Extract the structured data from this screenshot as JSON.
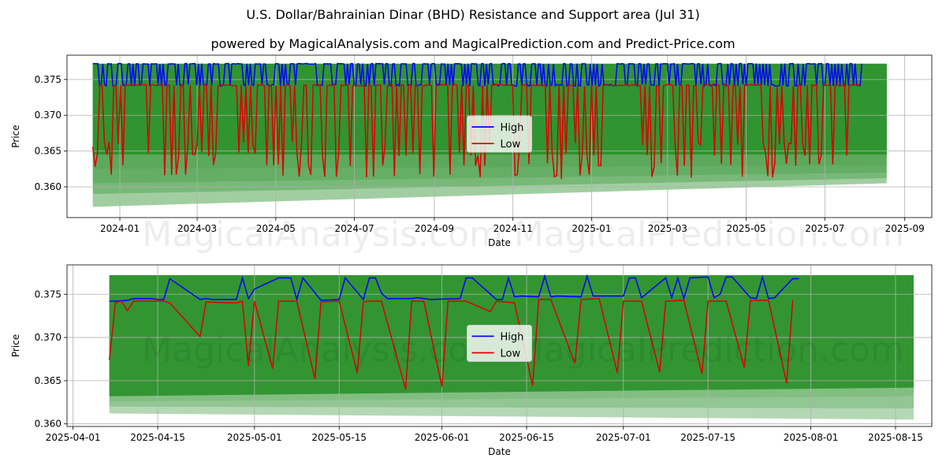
{
  "title": "U.S. Dollar/Bahrainian Dinar (BHD) Resistance and Support area (Jul 31)",
  "subtitle": "powered by MagicalAnalysis.com and MagicalPrediction.com and Predict-Price.com",
  "watermark": "MagicalAnalysis.com    MagicalPrediction.com",
  "colors": {
    "high": "#0000ff",
    "low": "#dd0000",
    "band": "#2e932e",
    "grid": "#b0b0b0"
  },
  "chart_data": [
    {
      "type": "line",
      "xlabel": "Date",
      "ylabel": "Price",
      "legend": {
        "position": "center",
        "entries": [
          "High",
          "Low"
        ]
      },
      "grid": true,
      "x_ticks": [
        "2024-01",
        "2024-03",
        "2024-05",
        "2024-07",
        "2024-09",
        "2024-11",
        "2025-01",
        "2025-03",
        "2025-05",
        "2025-07",
        "2025-09"
      ],
      "y_ticks": [
        "0.375",
        "0.370",
        "0.365",
        "0.360"
      ],
      "xlim": [
        "2023-11-21",
        "2025-09-22"
      ],
      "ylim": [
        0.3557,
        0.3784
      ],
      "x_start": "2023-12-11",
      "x_end": "2025-07-30",
      "resistance_zone": {
        "start": "2023-12-11",
        "end": "2025-08-18",
        "upper": 0.3772,
        "support_start": [
          0.3645,
          0.3625,
          0.3605,
          0.359,
          0.3572
        ],
        "support_end": [
          0.3645,
          0.363,
          0.362,
          0.3612,
          0.3605
        ]
      },
      "series": [
        {
          "name": "High",
          "base": 0.3772,
          "dips": [
            0.3743,
            0.3742,
            0.3741
          ],
          "max": 0.3773
        },
        {
          "name": "Low",
          "base": 0.3742,
          "dips": [
            0.3663,
            0.3648,
            0.3633,
            0.3618
          ],
          "min": 0.3611
        }
      ]
    },
    {
      "type": "line",
      "xlabel": "Date",
      "ylabel": "Price",
      "legend": {
        "position": "center",
        "entries": [
          "High",
          "Low"
        ]
      },
      "grid": true,
      "x_ticks": [
        "2025-04-01",
        "2025-04-15",
        "2025-05-01",
        "2025-05-15",
        "2025-06-01",
        "2025-06-15",
        "2025-07-01",
        "2025-07-15",
        "2025-08-01",
        "2025-08-15"
      ],
      "y_ticks": [
        "0.375",
        "0.370",
        "0.365",
        "0.360"
      ],
      "xlim": [
        "2025-03-31",
        "2025-08-21"
      ],
      "ylim": [
        0.3597,
        0.3784
      ],
      "resistance_zone": {
        "start": "2025-04-07",
        "end": "2025-08-18",
        "upper": 0.3772,
        "support_start": [
          0.3632,
          0.3626,
          0.362,
          0.3612
        ],
        "support_end": [
          0.3642,
          0.3632,
          0.3618,
          0.3605
        ]
      },
      "high": [
        [
          "2025-04-07",
          0.3742
        ],
        [
          "2025-04-08",
          0.3742
        ],
        [
          "2025-04-10",
          0.3743
        ],
        [
          "2025-04-11",
          0.3745
        ],
        [
          "2025-04-14",
          0.3745
        ],
        [
          "2025-04-15",
          0.3744
        ],
        [
          "2025-04-16",
          0.3744
        ],
        [
          "2025-04-17",
          0.3768
        ],
        [
          "2025-04-22",
          0.3744
        ],
        [
          "2025-04-23",
          0.3745
        ],
        [
          "2025-04-24",
          0.3744
        ],
        [
          "2025-04-28",
          0.3744
        ],
        [
          "2025-04-29",
          0.3769
        ],
        [
          "2025-04-30",
          0.3745
        ],
        [
          "2025-05-01",
          0.3756
        ],
        [
          "2025-05-05",
          0.3769
        ],
        [
          "2025-05-07",
          0.3769
        ],
        [
          "2025-05-08",
          0.3744
        ],
        [
          "2025-05-09",
          0.3769
        ],
        [
          "2025-05-12",
          0.3743
        ],
        [
          "2025-05-15",
          0.3744
        ],
        [
          "2025-05-16",
          0.3769
        ],
        [
          "2025-05-19",
          0.3744
        ],
        [
          "2025-05-20",
          0.3769
        ],
        [
          "2025-05-21",
          0.3769
        ],
        [
          "2025-05-22",
          0.3751
        ],
        [
          "2025-05-23",
          0.3745
        ],
        [
          "2025-05-27",
          0.3745
        ],
        [
          "2025-05-28",
          0.3746
        ],
        [
          "2025-05-30",
          0.3744
        ],
        [
          "2025-06-04",
          0.3745
        ],
        [
          "2025-06-05",
          0.3769
        ],
        [
          "2025-06-06",
          0.3769
        ],
        [
          "2025-06-10",
          0.3744
        ],
        [
          "2025-06-11",
          0.3744
        ],
        [
          "2025-06-12",
          0.3769
        ],
        [
          "2025-06-13",
          0.3747
        ],
        [
          "2025-06-14",
          0.3748
        ],
        [
          "2025-06-17",
          0.3747
        ],
        [
          "2025-06-18",
          0.3771
        ],
        [
          "2025-06-19",
          0.3747
        ],
        [
          "2025-06-20",
          0.3748
        ],
        [
          "2025-06-24",
          0.3747
        ],
        [
          "2025-06-25",
          0.3771
        ],
        [
          "2025-06-26",
          0.3748
        ],
        [
          "2025-07-01",
          0.3748
        ],
        [
          "2025-07-02",
          0.3769
        ],
        [
          "2025-07-03",
          0.3769
        ],
        [
          "2025-07-04",
          0.3746
        ],
        [
          "2025-07-08",
          0.3769
        ],
        [
          "2025-07-09",
          0.3746
        ],
        [
          "2025-07-10",
          0.3769
        ],
        [
          "2025-07-11",
          0.3745
        ],
        [
          "2025-07-12",
          0.3769
        ],
        [
          "2025-07-15",
          0.377
        ],
        [
          "2025-07-16",
          0.3746
        ],
        [
          "2025-07-17",
          0.375
        ],
        [
          "2025-07-18",
          0.377
        ],
        [
          "2025-07-19",
          0.377
        ],
        [
          "2025-07-22",
          0.3746
        ],
        [
          "2025-07-23",
          0.3745
        ],
        [
          "2025-07-24",
          0.377
        ],
        [
          "2025-07-25",
          0.3745
        ],
        [
          "2025-07-26",
          0.3746
        ],
        [
          "2025-07-29",
          0.3768
        ],
        [
          "2025-07-30",
          0.3768
        ]
      ],
      "low": [
        [
          "2025-04-07",
          0.3674
        ],
        [
          "2025-04-08",
          0.374
        ],
        [
          "2025-04-09",
          0.3742
        ],
        [
          "2025-04-10",
          0.3731
        ],
        [
          "2025-04-11",
          0.3742
        ],
        [
          "2025-04-16",
          0.3742
        ],
        [
          "2025-04-17",
          0.374
        ],
        [
          "2025-04-22",
          0.3701
        ],
        [
          "2025-04-23",
          0.3741
        ],
        [
          "2025-04-28",
          0.374
        ],
        [
          "2025-04-29",
          0.3742
        ],
        [
          "2025-04-30",
          0.3667
        ],
        [
          "2025-05-01",
          0.3742
        ],
        [
          "2025-05-04",
          0.3664
        ],
        [
          "2025-05-05",
          0.3742
        ],
        [
          "2025-05-08",
          0.3742
        ],
        [
          "2025-05-11",
          0.3652
        ],
        [
          "2025-05-12",
          0.3741
        ],
        [
          "2025-05-15",
          0.3742
        ],
        [
          "2025-05-18",
          0.3659
        ],
        [
          "2025-05-19",
          0.3741
        ],
        [
          "2025-05-20",
          0.3742
        ],
        [
          "2025-05-22",
          0.3742
        ],
        [
          "2025-05-26",
          0.364
        ],
        [
          "2025-05-27",
          0.3742
        ],
        [
          "2025-05-29",
          0.3742
        ],
        [
          "2025-06-01",
          0.3643
        ],
        [
          "2025-06-02",
          0.3742
        ],
        [
          "2025-06-05",
          0.3742
        ],
        [
          "2025-06-09",
          0.373
        ],
        [
          "2025-06-10",
          0.3742
        ],
        [
          "2025-06-13",
          0.374
        ],
        [
          "2025-06-16",
          0.3644
        ],
        [
          "2025-06-17",
          0.3744
        ],
        [
          "2025-06-19",
          0.3744
        ],
        [
          "2025-06-23",
          0.367
        ],
        [
          "2025-06-24",
          0.3744
        ],
        [
          "2025-06-27",
          0.3745
        ],
        [
          "2025-06-30",
          0.3659
        ],
        [
          "2025-07-01",
          0.3742
        ],
        [
          "2025-07-04",
          0.3742
        ],
        [
          "2025-07-07",
          0.366
        ],
        [
          "2025-07-08",
          0.3742
        ],
        [
          "2025-07-11",
          0.3743
        ],
        [
          "2025-07-14",
          0.3658
        ],
        [
          "2025-07-15",
          0.3742
        ],
        [
          "2025-07-18",
          0.3742
        ],
        [
          "2025-07-21",
          0.3665
        ],
        [
          "2025-07-22",
          0.3743
        ],
        [
          "2025-07-25",
          0.3743
        ],
        [
          "2025-07-28",
          0.3647
        ],
        [
          "2025-07-29",
          0.3743
        ]
      ]
    }
  ]
}
